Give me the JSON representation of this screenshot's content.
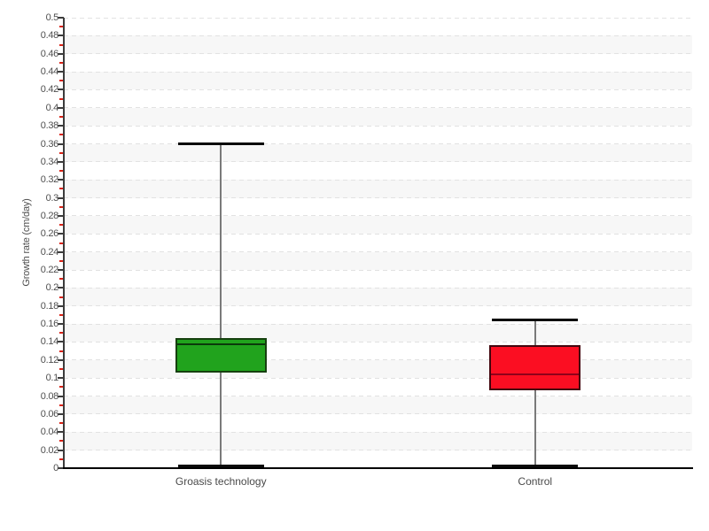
{
  "page": {
    "background": "#ffffff"
  },
  "chart_data": {
    "type": "boxplot",
    "title": "",
    "xlabel": "",
    "ylabel": "Growth rate (cm/day)",
    "ylim": [
      0,
      0.5
    ],
    "ytick_step": 0.02,
    "yminor_tick_step": 0.01,
    "grid": {
      "horizontal": true,
      "style": "dashed",
      "color": "#e2e2e2"
    },
    "band_colors": [
      "#ffffff",
      "#f7f7f7"
    ],
    "legend": "none",
    "axis": {
      "line_color": "#3c3c3c",
      "x_line_color": "#000000",
      "tick_color": "#3c3c3c",
      "minor_tick_color": "#da2418",
      "label_color": "#4f4f4f"
    },
    "categories": [
      "Groasis technology",
      "Control"
    ],
    "series": [
      {
        "name": "Groasis technology",
        "box_color": "#21a31d",
        "border_color": "#16400f",
        "median_color": "#0b3a0b",
        "whisker_color": "#7a7a7a",
        "cap_color": "#0a0a0a",
        "min": 0.002,
        "q1": 0.106,
        "median": 0.1375,
        "q3": 0.144,
        "max": 0.36
      },
      {
        "name": "Control",
        "box_color": "#fb0e22",
        "border_color": "#43060e",
        "median_color": "#90001a",
        "whisker_color": "#7a7a7a",
        "cap_color": "#0a0a0a",
        "min": 0.002,
        "q1": 0.0865,
        "median": 0.104,
        "q3": 0.1365,
        "max": 0.165
      }
    ]
  }
}
